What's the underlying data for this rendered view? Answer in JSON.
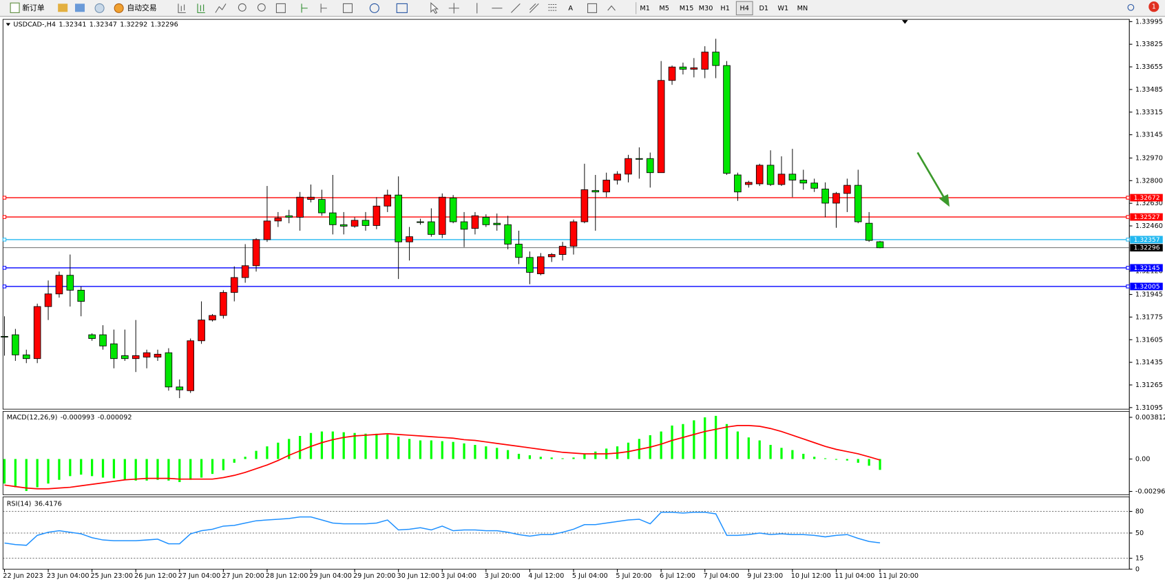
{
  "toolbar": {
    "new_order": "新订单",
    "auto_trading": "自动交易",
    "timeframes": [
      "M1",
      "M5",
      "M15",
      "M30",
      "H1",
      "H4",
      "D1",
      "W1",
      "MN"
    ],
    "active": 5,
    "alerts": 1
  },
  "chart_data": [
    {
      "type": "candlestick",
      "symbol": "USDCAD-,H4",
      "up_color": "#ff0000",
      "down_color": "#00e600",
      "categories": [
        "22 Jun 2023",
        null,
        null,
        null,
        "23 Jun 04:00",
        null,
        null,
        null,
        "25 Jun 23:00",
        null,
        null,
        null,
        "26 Jun 12:00",
        null,
        null,
        null,
        "27 Jun 04:00",
        null,
        null,
        null,
        "27 Jun 20:00",
        null,
        null,
        null,
        "28 Jun 12:00",
        null,
        null,
        null,
        "29 Jun 04:00",
        null,
        null,
        null,
        "29 Jun 20:00",
        null,
        null,
        null,
        "30 Jun 12:00",
        null,
        null,
        null,
        "3 Jul 04:00",
        null,
        null,
        null,
        "3 Jul 20:00",
        null,
        null,
        null,
        "4 Jul 12:00",
        null,
        null,
        null,
        "5 Jul 04:00",
        null,
        null,
        null,
        "5 Jul 20:00",
        null,
        null,
        null,
        "6 Jul 12:00",
        null,
        null,
        null,
        "7 Jul 04:00",
        null,
        null,
        null,
        "9 Jul 23:00",
        null,
        null,
        null,
        "10 Jul 12:00",
        null,
        null,
        null,
        "11 Jul 04:00",
        null,
        null,
        null,
        "11 Jul 20:00"
      ],
      "open": [
        1.3163,
        1.31642,
        1.31491,
        1.31463,
        1.31854,
        1.31949,
        1.32089,
        1.31977,
        1.31642,
        1.31642,
        1.31574,
        1.31485,
        1.31463,
        1.31474,
        1.31474,
        1.31507,
        1.3125,
        1.31222,
        1.31597,
        1.31753,
        1.31787,
        1.3196,
        1.32072,
        1.32161,
        1.32357,
        1.32497,
        1.32536,
        1.32525,
        1.32659,
        1.32659,
        1.32558,
        1.32469,
        1.32458,
        1.32502,
        1.32463,
        1.32609,
        1.32692,
        1.3234,
        1.32491,
        1.32491,
        1.32396,
        1.3267,
        1.32491,
        1.32441,
        1.32525,
        1.3248,
        1.32469,
        1.32323,
        1.32223,
        1.321,
        1.32228,
        1.32245,
        1.32307,
        1.32491,
        1.32726,
        1.32715,
        1.32804,
        1.32849,
        1.32966,
        1.32966,
        1.3286,
        1.33553,
        1.33654,
        1.33637,
        1.33637,
        1.33766,
        1.33665,
        1.32843,
        1.32771,
        1.32776,
        1.32916,
        1.32771,
        1.32849,
        1.32804,
        1.32782,
        1.32737,
        1.32631,
        1.32704,
        1.32765,
        1.3248,
        1.32341
      ],
      "high": [
        1.31781,
        1.31686,
        1.3153,
        1.31876,
        1.3205,
        1.32117,
        1.32245,
        1.32005,
        1.31653,
        1.31714,
        1.31681,
        1.31681,
        1.31753,
        1.3153,
        1.3153,
        1.31541,
        1.31306,
        1.31614,
        1.31893,
        1.31798,
        1.31977,
        1.32156,
        1.32323,
        1.32368,
        1.3276,
        1.32564,
        1.32581,
        1.32715,
        1.32771,
        1.32732,
        1.32843,
        1.32564,
        1.32525,
        1.32564,
        1.32676,
        1.32732,
        1.32832,
        1.32452,
        1.32514,
        1.32592,
        1.32704,
        1.32692,
        1.32564,
        1.32564,
        1.32547,
        1.32553,
        1.32536,
        1.32424,
        1.32268,
        1.32256,
        1.32256,
        1.3234,
        1.32508,
        1.32927,
        1.32843,
        1.3286,
        1.32871,
        1.32994,
        1.3305,
        1.33011,
        1.33699,
        1.33665,
        1.33687,
        1.33721,
        1.3381,
        1.33866,
        1.33699,
        1.3286,
        1.32799,
        1.32927,
        1.33028,
        1.32983,
        1.33039,
        1.32882,
        1.32815,
        1.32787,
        1.32715,
        1.32815,
        1.32882,
        1.32564,
        1.32347
      ],
      "low": [
        1.31485,
        1.31446,
        1.31429,
        1.31429,
        1.31753,
        1.31921,
        1.31854,
        1.31781,
        1.31597,
        1.3153,
        1.3139,
        1.31446,
        1.31362,
        1.3139,
        1.31446,
        1.31222,
        1.31166,
        1.31205,
        1.31574,
        1.31742,
        1.31764,
        1.31893,
        1.32033,
        1.32117,
        1.3234,
        1.32452,
        1.3248,
        1.32424,
        1.32637,
        1.32536,
        1.32396,
        1.32396,
        1.32446,
        1.32424,
        1.32435,
        1.32564,
        1.32061,
        1.322,
        1.32469,
        1.32379,
        1.32368,
        1.3248,
        1.32301,
        1.32396,
        1.32452,
        1.32424,
        1.32284,
        1.32173,
        1.32022,
        1.32089,
        1.32189,
        1.322,
        1.32245,
        1.3248,
        1.32424,
        1.32676,
        1.32771,
        1.32787,
        1.32815,
        1.32748,
        1.3286,
        1.3352,
        1.33598,
        1.33576,
        1.3357,
        1.3357,
        1.32843,
        1.32648,
        1.32748,
        1.3276,
        1.3276,
        1.3276,
        1.32676,
        1.32732,
        1.32715,
        1.32525,
        1.32446,
        1.32564,
        1.3248,
        1.3234,
        1.32292
      ],
      "close": [
        1.31625,
        1.31491,
        1.31463,
        1.31854,
        1.31949,
        1.32089,
        1.31977,
        1.31893,
        1.31614,
        1.31558,
        1.31463,
        1.31463,
        1.31485,
        1.31507,
        1.31496,
        1.3125,
        1.31228,
        1.31597,
        1.31753,
        1.31787,
        1.3196,
        1.32072,
        1.32161,
        1.32357,
        1.32497,
        1.32519,
        1.32525,
        1.32676,
        1.32676,
        1.32558,
        1.32469,
        1.32458,
        1.32502,
        1.32463,
        1.32609,
        1.32692,
        1.3234,
        1.32379,
        1.32491,
        1.32396,
        1.32676,
        1.32491,
        1.32435,
        1.32536,
        1.32469,
        1.32469,
        1.32323,
        1.32223,
        1.32111,
        1.32228,
        1.32245,
        1.32307,
        1.32491,
        1.32732,
        1.32715,
        1.32804,
        1.32849,
        1.32966,
        1.32966,
        1.3286,
        1.33553,
        1.33654,
        1.33637,
        1.33648,
        1.33766,
        1.33665,
        1.32855,
        1.32715,
        1.32787,
        1.32916,
        1.32771,
        1.32849,
        1.32804,
        1.32782,
        1.32743,
        1.32631,
        1.32704,
        1.32765,
        1.32491,
        1.32351,
        1.32296
      ],
      "ylim": [
        1.31083,
        1.34012
      ],
      "yticks": [
        1.33995,
        1.33825,
        1.33655,
        1.33485,
        1.33315,
        1.33145,
        {
          "value": 1.3297,
          "label": "1.32970"
        },
        {
          "value": 1.328,
          "label": "1.32800"
        },
        {
          "value": 1.3263,
          "label": "1.32630"
        },
        {
          "value": 1.3246,
          "label": "1.32460"
        },
        {
          "value": 1.3212,
          "label": "1.32120"
        },
        1.31945,
        1.31775,
        1.31605,
        1.31435,
        1.31265,
        1.31095
      ],
      "levels": [
        {
          "value": 1.32672,
          "color": "#ff0000"
        },
        {
          "value": 1.32527,
          "color": "#ff0000"
        },
        {
          "value": 1.32357,
          "color": "#22b8f0"
        },
        {
          "value": 1.32145,
          "color": "#0000ff"
        },
        {
          "value": 1.32005,
          "color": "#0000ff"
        }
      ],
      "price_line_color": "#000000"
    },
    {
      "type": "macd",
      "title": "MACD(12,26,9)",
      "color": "#00ff00",
      "signal_color": "#ff0000",
      "values": [
        -0.002244,
        -0.002584,
        -0.002924,
        -0.002584,
        -0.002244,
        -0.001904,
        -0.001564,
        -0.001428,
        -0.001564,
        -0.0017,
        -0.001768,
        -0.001904,
        -0.001972,
        -0.001972,
        -0.001904,
        -0.001972,
        -0.002108,
        -0.001904,
        -0.0017,
        -0.00136,
        -0.00102,
        -0.00034,
        0.000204,
        0.000748,
        0.001156,
        0.001496,
        0.001836,
        0.002108,
        0.00238,
        0.002516,
        0.002516,
        0.002448,
        0.00238,
        0.002312,
        0.002312,
        0.002244,
        0.00204,
        0.001836,
        0.0017,
        0.0017,
        0.001632,
        0.001564,
        0.001428,
        0.001292,
        0.001156,
        0.00102,
        0.000816,
        0.000476,
        0.00034,
        0.000204,
        0.000136,
        6.8e-05,
        0.000136,
        0.000476,
        0.00068,
        0.000952,
        0.001156,
        0.001496,
        0.001836,
        0.002176,
        0.002516,
        0.00306,
        0.003196,
        0.003536,
        0.003808,
        0.003944,
        0.003196,
        0.002516,
        0.001972,
        0.0017,
        0.001292,
        0.00102,
        0.000816,
        0.000476,
        0.000204,
        6.8e-05,
        -6.8e-05,
        -0.000136,
        -0.00034,
        -0.000612,
        -0.000993
      ],
      "signal": [
        -0.00238,
        -0.002516,
        -0.002652,
        -0.00272,
        -0.00272,
        -0.002652,
        -0.002584,
        -0.002448,
        -0.002312,
        -0.002176,
        -0.00204,
        -0.001904,
        -0.001836,
        -0.001768,
        -0.001768,
        -0.001768,
        -0.001836,
        -0.001836,
        -0.001836,
        -0.001836,
        -0.0017,
        -0.001496,
        -0.001224,
        -0.000884,
        -0.000544,
        -0.000136,
        0.00034,
        0.000748,
        0.001156,
        0.001496,
        0.001768,
        0.001972,
        0.002108,
        0.002176,
        0.002244,
        0.002312,
        0.002244,
        0.002176,
        0.002108,
        0.00204,
        0.001972,
        0.001904,
        0.001768,
        0.0017,
        0.001564,
        0.001428,
        0.001292,
        0.001156,
        0.00102,
        0.000884,
        0.000748,
        0.000612,
        0.000544,
        0.000476,
        0.000476,
        0.000476,
        0.000544,
        0.00068,
        0.000884,
        0.001088,
        0.00136,
        0.0017,
        0.001972,
        0.002244,
        0.002516,
        0.00272,
        0.002924,
        0.00306,
        0.00306,
        0.002992,
        0.002788,
        0.002516,
        0.002176,
        0.001836,
        0.001496,
        0.001156,
        0.000884,
        0.00068,
        0.000476,
        0.000204,
        -9.2e-05
      ],
      "ylim": [
        -0.003264,
        0.004352
      ],
      "yticks": [
        0.003812,
        {
          "value": 0,
          "label": "0.00"
        },
        -0.002961
      ]
    },
    {
      "type": "line",
      "title": "RSI(14)",
      "color": "#1e90ff",
      "grid": "dotted",
      "values": [
        36.2,
        34.0,
        33.0,
        46.8,
        51.1,
        53.2,
        51.1,
        48.9,
        43.6,
        40.4,
        39.4,
        39.4,
        39.4,
        40.4,
        41.5,
        35.1,
        35.1,
        48.9,
        53.2,
        55.3,
        59.6,
        60.6,
        63.8,
        67.0,
        68.1,
        69.1,
        70.2,
        72.3,
        72.3,
        68.1,
        63.8,
        62.8,
        62.8,
        62.8,
        63.8,
        68.1,
        54.3,
        55.3,
        57.4,
        54.3,
        59.6,
        53.2,
        54.3,
        54.3,
        53.2,
        53.2,
        51.1,
        47.9,
        45.7,
        47.9,
        47.9,
        51.1,
        55.3,
        61.7,
        61.7,
        63.8,
        66.0,
        68.1,
        69.1,
        62.8,
        78.7,
        78.7,
        77.7,
        78.7,
        78.7,
        76.6,
        46.8,
        46.8,
        47.9,
        50.0,
        47.9,
        48.9,
        47.9,
        47.9,
        46.8,
        44.7,
        46.8,
        47.9,
        42.6,
        38.3,
        36.4176
      ],
      "ylim": [
        0,
        100
      ],
      "yticks": [
        80,
        50,
        15,
        0
      ]
    }
  ]
}
